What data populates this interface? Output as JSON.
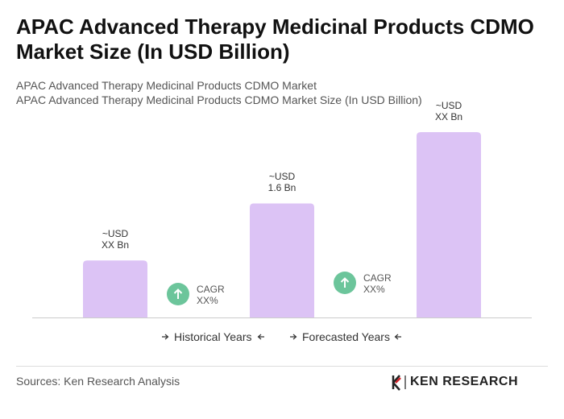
{
  "chart_data": {
    "type": "bar",
    "title": "APAC Advanced Therapy Medicinal Products CDMO Market Size (In USD Billion)",
    "subtitle": [
      "APAC Advanced Therapy Medicinal Products CDMO Market",
      "APAC Advanced Therapy Medicinal Products CDMO Market Size (In USD Billion)"
    ],
    "categories": [
      null,
      null,
      null
    ],
    "values": [
      0.8,
      1.6,
      2.6
    ],
    "value_labels": [
      "~USD\nXX Bn",
      "~USD\n1.6 Bn",
      "~USD\nXX Bn"
    ],
    "color": "#dcc3f5",
    "annotations": [
      "CAGR\nXX%",
      "CAGR\nXX%"
    ],
    "periods": [
      "Historical Years",
      "Forecasted Years"
    ],
    "source": "Sources: Ken Research Analysis",
    "brand": "KEN RESEARCH"
  }
}
